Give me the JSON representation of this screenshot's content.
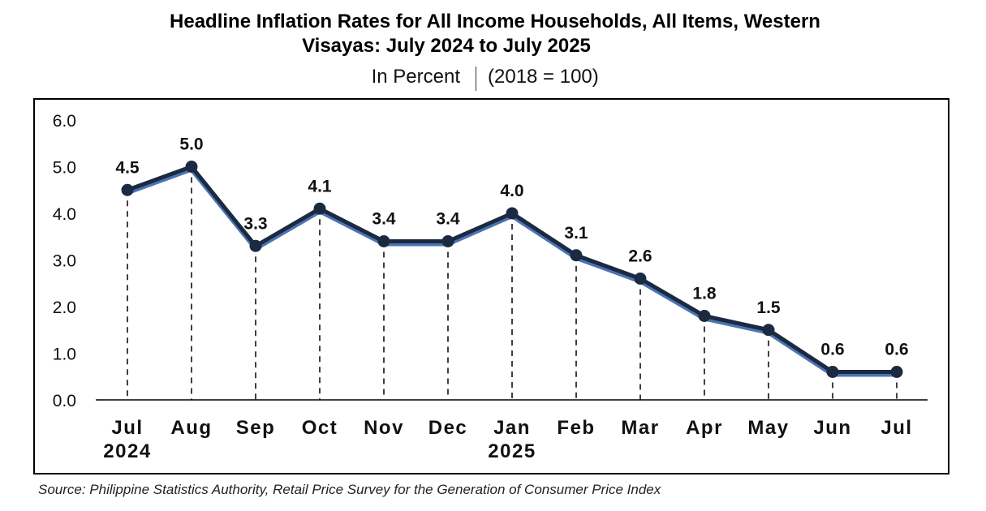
{
  "chart_data": {
    "type": "line",
    "title_line1": "Headline Inflation Rates for All Income Households, All Items, Western",
    "title_line2": "Visayas: July 2024 to July 2025",
    "unit": "In Percent",
    "base": "(2018 = 100)",
    "categories": [
      "Jul",
      "Aug",
      "Sep",
      "Oct",
      "Nov",
      "Dec",
      "Jan",
      "Feb",
      "Mar",
      "Apr",
      "May",
      "Jun",
      "Jul"
    ],
    "year_labels": [
      "2024",
      "",
      "",
      "",
      "",
      "",
      "2025",
      "",
      "",
      "",
      "",
      "",
      ""
    ],
    "series": [
      {
        "values": [
          4.5,
          5.0,
          3.3,
          4.1,
          3.4,
          3.4,
          4.0,
          3.1,
          2.6,
          1.8,
          1.5,
          0.6,
          0.6
        ],
        "data_labels": [
          "4.5",
          "5.0",
          "3.3",
          "4.1",
          "3.4",
          "3.4",
          "4.0",
          "3.1",
          "2.6",
          "1.8",
          "1.5",
          "0.6",
          "0.6"
        ],
        "color": "#1b2a41",
        "shadow_color": "#4a74b4"
      }
    ],
    "ylim": [
      0,
      6
    ],
    "yticks": [
      "0.0",
      "1.0",
      "2.0",
      "3.0",
      "4.0",
      "5.0",
      "6.0"
    ],
    "drop_lines": "dashed",
    "grid": false,
    "legend": "none",
    "source": "Source: Philippine Statistics Authority, Retail Price Survey for the Generation of Consumer Price Index"
  }
}
